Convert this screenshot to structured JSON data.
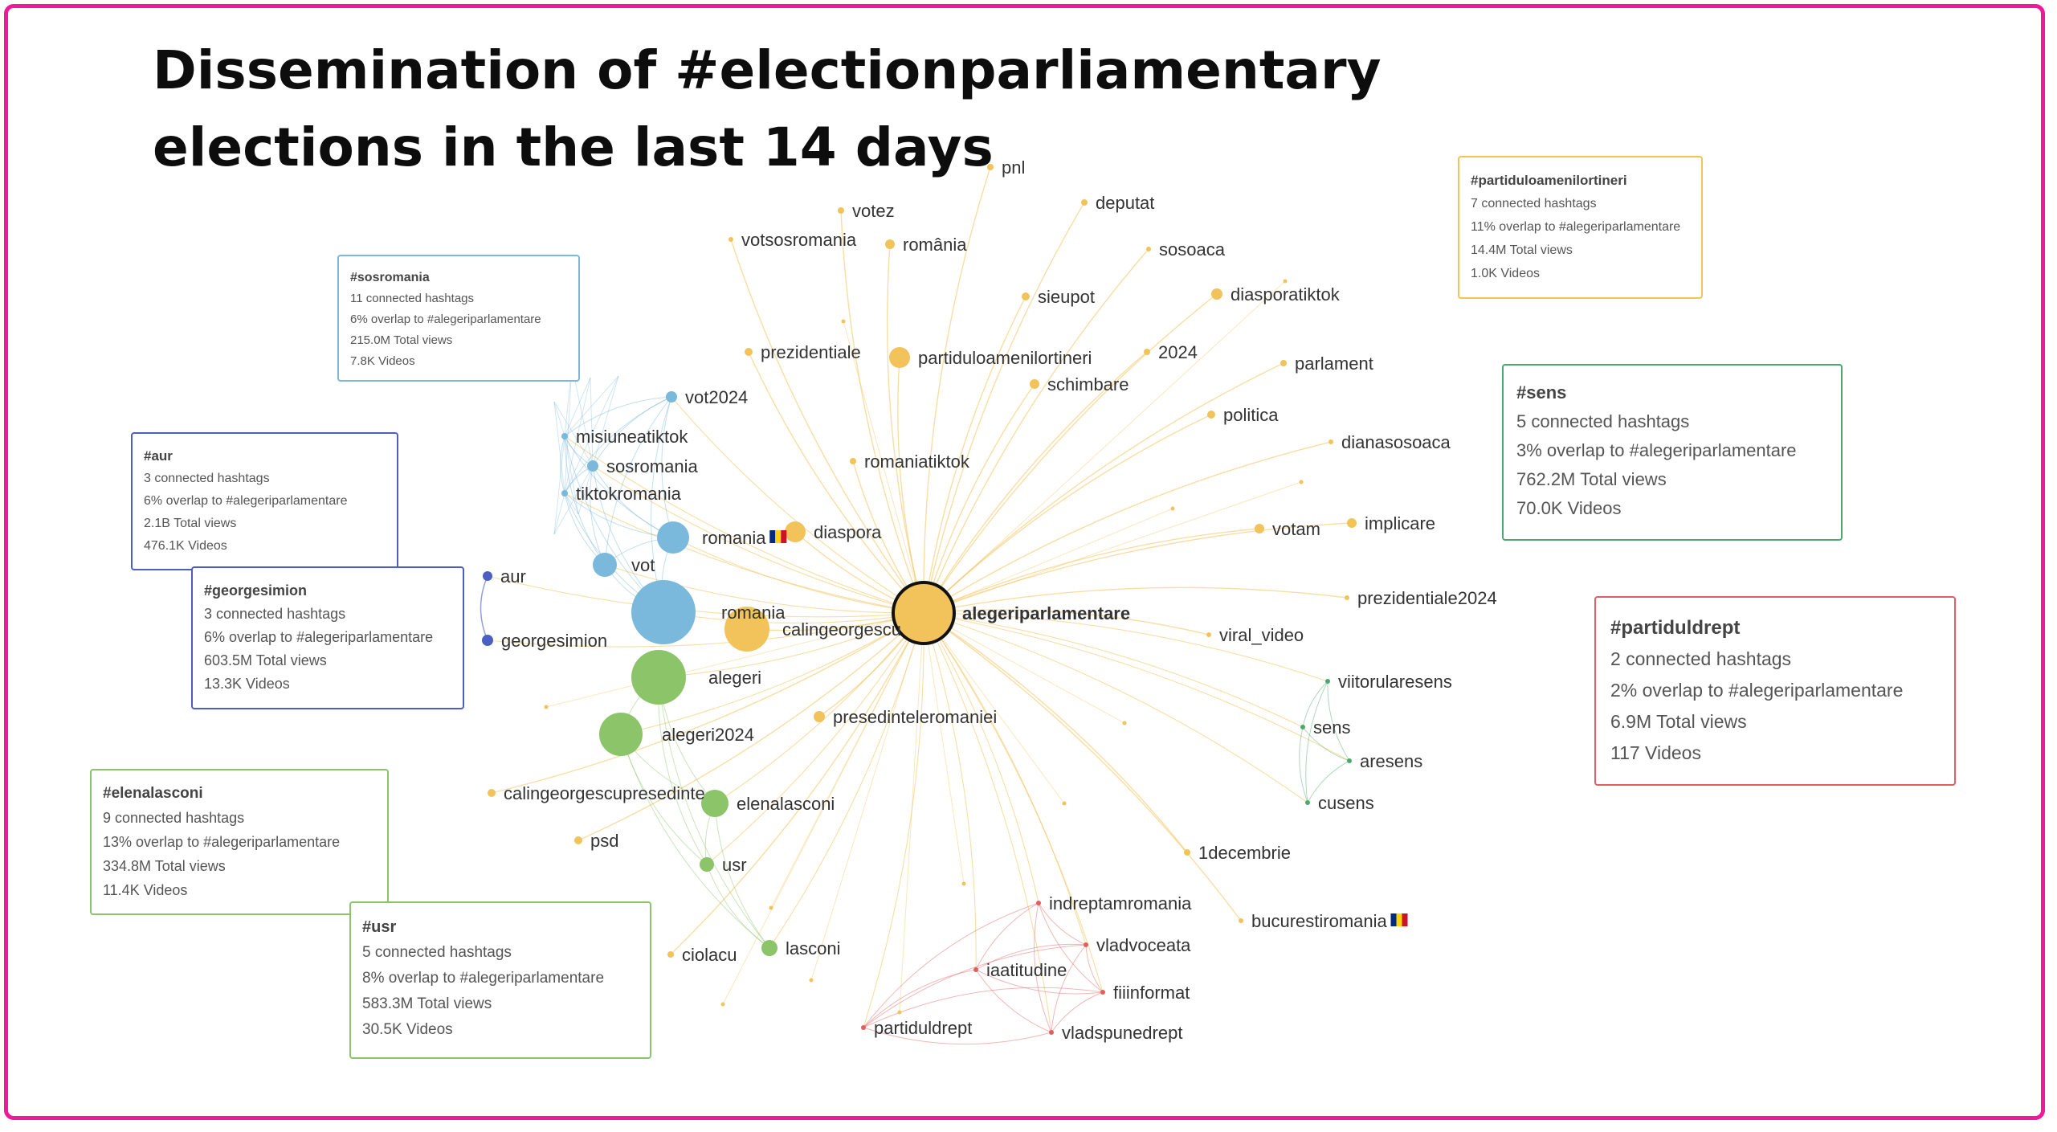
{
  "title": {
    "line1": "Dissemination of #electionparliamentary",
    "line2": "elections in the last 14 days"
  },
  "colors": {
    "border": "#ee1a9a",
    "yellow": "#f2c35a",
    "blue": "#7ab8dc",
    "green": "#8cc46a",
    "navy": "#4a5fc0",
    "teal": "#4ea86e",
    "red": "#e06060",
    "center_stroke": "#111111"
  },
  "center": {
    "label": "alegeriparlamentare",
    "color": "yellow"
  },
  "nodes": [
    {
      "id": "pnl",
      "label": "pnl",
      "color": "yellow"
    },
    {
      "id": "votez",
      "label": "votez",
      "color": "yellow"
    },
    {
      "id": "deputat",
      "label": "deputat",
      "color": "yellow"
    },
    {
      "id": "votsosromania",
      "label": "votsosromania",
      "color": "yellow"
    },
    {
      "id": "romania_diac",
      "label": "românia",
      "color": "yellow"
    },
    {
      "id": "sosoaca",
      "label": "sosoaca",
      "color": "yellow"
    },
    {
      "id": "sieupot",
      "label": "sieupot",
      "color": "yellow"
    },
    {
      "id": "diasporatiktok",
      "label": "diasporatiktok",
      "color": "yellow"
    },
    {
      "id": "prezidentiale",
      "label": "prezidentiale",
      "color": "yellow"
    },
    {
      "id": "partiduloamenilortineri",
      "label": "partiduloamenilortineri",
      "color": "yellow"
    },
    {
      "id": "y2024",
      "label": "2024",
      "color": "yellow"
    },
    {
      "id": "parlament",
      "label": "parlament",
      "color": "yellow"
    },
    {
      "id": "schimbare",
      "label": "schimbare",
      "color": "yellow"
    },
    {
      "id": "politica",
      "label": "politica",
      "color": "yellow"
    },
    {
      "id": "dianasosoaca",
      "label": "dianasosoaca",
      "color": "yellow"
    },
    {
      "id": "romaniatiktok",
      "label": "romaniatiktok",
      "color": "yellow"
    },
    {
      "id": "votam",
      "label": "votam",
      "color": "yellow"
    },
    {
      "id": "implicare",
      "label": "implicare",
      "color": "yellow"
    },
    {
      "id": "diaspora",
      "label": "diaspora",
      "color": "yellow"
    },
    {
      "id": "prezidentiale2024",
      "label": "prezidentiale2024",
      "color": "yellow"
    },
    {
      "id": "calingeorgescu",
      "label": "calingeorgescu",
      "color": "yellow"
    },
    {
      "id": "viral_video",
      "label": "viral_video",
      "color": "yellow"
    },
    {
      "id": "presedinteleromaniei",
      "label": "presedinteleromaniei",
      "color": "yellow"
    },
    {
      "id": "calingeorgescupresedinte",
      "label": "calingeorgescupresedinte",
      "color": "yellow"
    },
    {
      "id": "psd",
      "label": "psd",
      "color": "yellow"
    },
    {
      "id": "ciolacu",
      "label": "ciolacu",
      "color": "yellow"
    },
    {
      "id": "decembrie",
      "label": "1decembrie",
      "color": "yellow"
    },
    {
      "id": "bucurestiromania",
      "label": "bucurestiromania",
      "color": "yellow"
    },
    {
      "id": "vot2024",
      "label": "vot2024",
      "color": "blue"
    },
    {
      "id": "misiuneatiktok",
      "label": "misiuneatiktok",
      "color": "blue"
    },
    {
      "id": "sosromania",
      "label": "sosromania",
      "color": "blue"
    },
    {
      "id": "tiktokromania",
      "label": "tiktokromania",
      "color": "blue"
    },
    {
      "id": "romania_flag",
      "label": "romania",
      "color": "blue"
    },
    {
      "id": "vot",
      "label": "vot",
      "color": "blue"
    },
    {
      "id": "romania_big",
      "label": "romania",
      "color": "blue"
    },
    {
      "id": "aur",
      "label": "aur",
      "color": "navy"
    },
    {
      "id": "georgesimion",
      "label": "georgesimion",
      "color": "navy"
    },
    {
      "id": "alegeri",
      "label": "alegeri",
      "color": "green"
    },
    {
      "id": "alegeri2024",
      "label": "alegeri2024",
      "color": "green"
    },
    {
      "id": "elenalasconi",
      "label": "elenalasconi",
      "color": "green"
    },
    {
      "id": "usr",
      "label": "usr",
      "color": "green"
    },
    {
      "id": "lasconi",
      "label": "lasconi",
      "color": "green"
    },
    {
      "id": "viitorularesens",
      "label": "viitorularesens",
      "color": "teal"
    },
    {
      "id": "sens",
      "label": "sens",
      "color": "teal"
    },
    {
      "id": "aresens",
      "label": "aresens",
      "color": "teal"
    },
    {
      "id": "cusens",
      "label": "cusens",
      "color": "teal"
    },
    {
      "id": "indreptamromania",
      "label": "indreptamromania",
      "color": "red"
    },
    {
      "id": "vladvoceata",
      "label": "vladvoceata",
      "color": "red"
    },
    {
      "id": "iaatitudine",
      "label": "iaatitudine",
      "color": "red"
    },
    {
      "id": "fiiinformat",
      "label": "fiiinformat",
      "color": "red"
    },
    {
      "id": "partiduldrept",
      "label": "partiduldrept",
      "color": "red"
    },
    {
      "id": "vladspunedrept",
      "label": "vladspunedrept",
      "color": "red"
    }
  ],
  "cards": [
    {
      "id": "sosromania",
      "title": "#sosromania",
      "lines": [
        "11 connected hashtags",
        "6% overlap to #alegeriparlamentare",
        "215.0M Total views",
        "7.8K Videos"
      ],
      "color": "blue"
    },
    {
      "id": "aur",
      "title": "#aur",
      "lines": [
        "3 connected hashtags",
        "6% overlap to #alegeriparlamentare",
        "2.1B Total views",
        "476.1K Videos"
      ],
      "color": "navy"
    },
    {
      "id": "georgesimion",
      "title": "#georgesimion",
      "lines": [
        "3 connected hashtags",
        "6% overlap to #alegeriparlamentare",
        "603.5M Total views",
        "13.3K Videos"
      ],
      "color": "navy"
    },
    {
      "id": "elenalasconi",
      "title": "#elenalasconi",
      "lines": [
        "9 connected hashtags",
        "13% overlap to #alegeriparlamentare",
        "334.8M Total views",
        "11.4K Videos"
      ],
      "color": "green"
    },
    {
      "id": "usr",
      "title": "#usr",
      "lines": [
        "5 connected hashtags",
        "8% overlap to #alegeriparlamentare",
        "583.3M Total views",
        "30.5K Videos"
      ],
      "color": "green"
    },
    {
      "id": "partiduloamenilortineri",
      "title": "#partiduloamenilortineri",
      "lines": [
        "7 connected hashtags",
        "11% overlap to #alegeriparlamentare",
        "14.4M Total views",
        "1.0K Videos"
      ],
      "color": "yellow"
    },
    {
      "id": "sens",
      "title": "#sens",
      "lines": [
        "5 connected hashtags",
        "3% overlap to #alegeriparlamentare",
        "762.2M Total views",
        "70.0K Videos"
      ],
      "color": "teal"
    },
    {
      "id": "partiduldrept",
      "title": "#partiduldrept",
      "lines": [
        "2 connected hashtags",
        "2% overlap to #alegeriparlamentare",
        "6.9M Total views",
        "117 Videos"
      ],
      "color": "red"
    }
  ]
}
